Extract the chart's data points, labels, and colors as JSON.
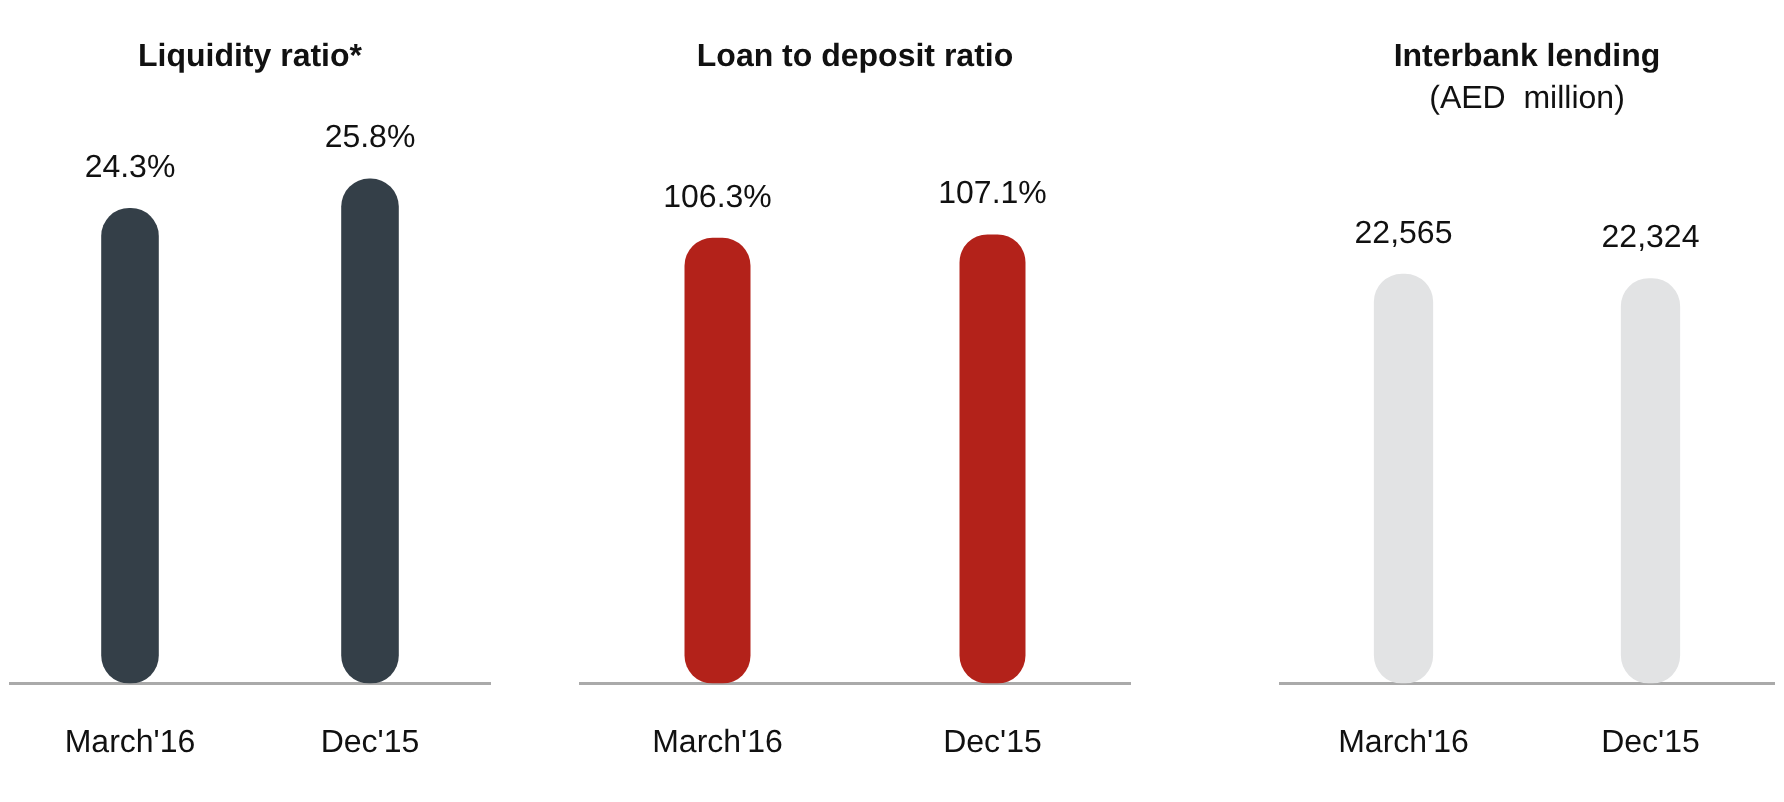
{
  "chart_data": [
    {
      "type": "bar",
      "title": "Liquidity ratio*",
      "categories": [
        "March'16",
        "Dec'15"
      ],
      "values": [
        24.3,
        25.8
      ],
      "value_labels": [
        "24.3%",
        "25.8%"
      ],
      "color": "#343f48"
    },
    {
      "type": "bar",
      "title": "Loan to deposit ratio",
      "categories": [
        "March'16",
        "Dec'15"
      ],
      "values": [
        106.3,
        107.1
      ],
      "value_labels": [
        "106.3%",
        "107.1%"
      ],
      "color": "#b3221a"
    },
    {
      "type": "bar",
      "title": "Interbank lending",
      "subtitle": "(AED  million)",
      "categories": [
        "March'16",
        "Dec'15"
      ],
      "values": [
        22565,
        22324
      ],
      "value_labels": [
        "22,565",
        "22,324"
      ],
      "color": "#e2e3e4"
    }
  ]
}
